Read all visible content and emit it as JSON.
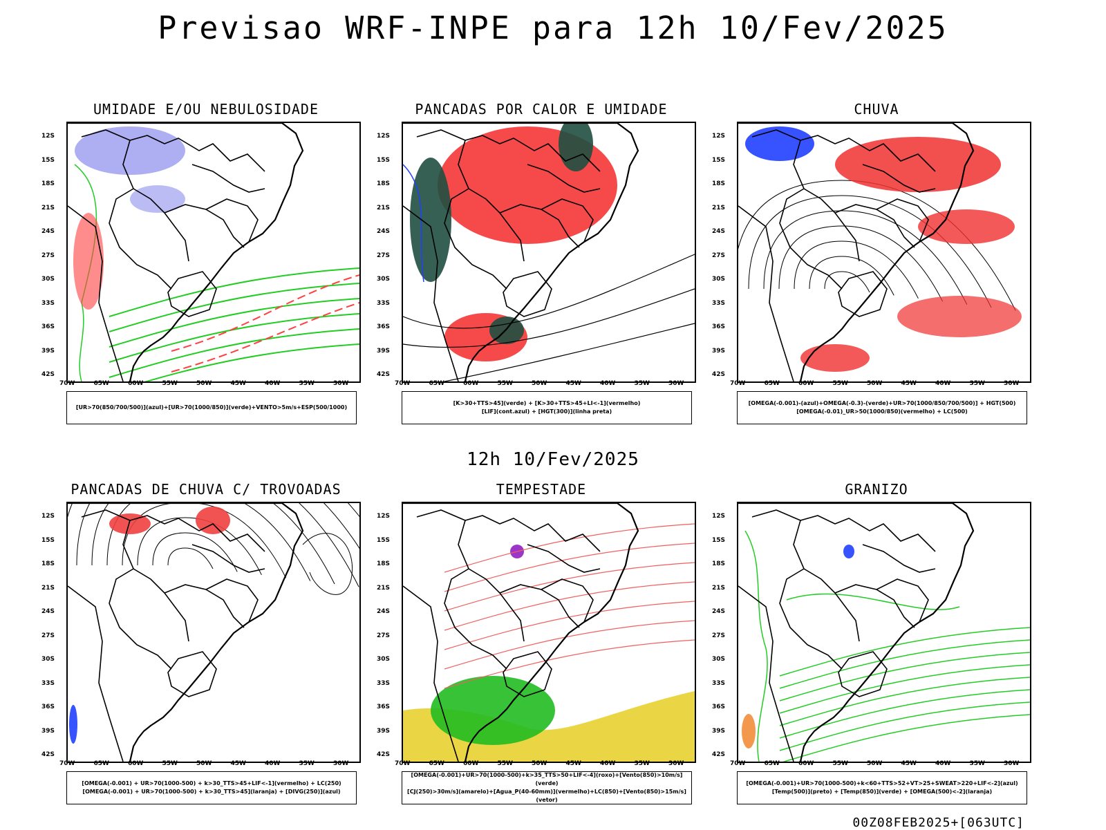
{
  "header": {
    "title": "Previsao WRF-INPE  para 12h 10/Fev/2025"
  },
  "middle": {
    "label": "12h 10/Fev/2025"
  },
  "footer": {
    "run": "00Z08FEB2025+[063UTC]"
  },
  "axes": {
    "lat_labels": [
      "12S",
      "15S",
      "18S",
      "21S",
      "24S",
      "27S",
      "30S",
      "33S",
      "36S",
      "39S",
      "42S"
    ],
    "lon_labels": [
      "70W",
      "65W",
      "60W",
      "55W",
      "50W",
      "45W",
      "40W",
      "35W",
      "30W"
    ]
  },
  "panels": [
    {
      "title": "UMIDADE E/OU NEBULOSIDADE",
      "legend": [
        "[UR>70(850/700/500)](azul)+[UR>70(1000/850)](verde)+VENTO>5m/s+ESP(500/1000)"
      ],
      "colors": {
        "blue": "#a0a0f0",
        "green": "#22cc22",
        "red": "#ff4040"
      }
    },
    {
      "title": "PANCADAS POR CALOR E UMIDADE",
      "legend": [
        "[K>30+TTS>45](verde) + [K>30+TTS>45+LI<-1](vermelho)",
        "[LIF](cont.azul) + [HGT(300)](linha preta)"
      ],
      "colors": {
        "red": "#f64040",
        "darkgreen": "#1f4f40",
        "blue": "#2040ff"
      }
    },
    {
      "title": "CHUVA",
      "legend": [
        "[OMEGA(-0.001)-(azul)+OMEGA(-0.3)-(verde)+UR>70(1000/850/700/500)] + HGT(500)",
        "[OMEGA(-0.01)_UR>50(1000/850)(vermelho) + LC(500)"
      ],
      "colors": {
        "red": "#f03030",
        "blue": "#2040ff"
      }
    },
    {
      "title": "PANCADAS DE CHUVA C/ TROVOADAS",
      "legend": [
        "[OMEGA(-0.001) + UR>70(1000-500) + k>30_TTS>45+LIF<-1](vermelho) + LC(250)",
        "[OMEGA(-0.001) + UR>70(1000-500) + k>30_TTS>45](laranja) + [DIVG(250)](azul)"
      ],
      "colors": {
        "red": "#f04040",
        "blue": "#2040ff"
      }
    },
    {
      "title": "TEMPESTADE",
      "legend": [
        "[OMEGA(-0.001)+UR>70(1000-500)+k>35_TTS>50+LIF<-4](roxo)+[Vento(850)>10m/s](verde)",
        "[CJ(250)>30m/s](amarelo)+[Agua_P(40-60mm)](vermelho)+LC(850)+[Vento(850)>15m/s](vetor)"
      ],
      "colors": {
        "yellow": "#e8d030",
        "green": "#22bb22",
        "red": "#f06060",
        "purple": "#9020c0"
      }
    },
    {
      "title": "GRANIZO",
      "legend": [
        "[OMEGA(-0.001)+UR>70(1000-500)+k<60+TTS>52+VT>25+SWEAT>220+LIF<-2](azul)",
        "[Temp(500)](preto) + [Temp(850)](verde) + [OMEGA(500)<-2](laranja)"
      ],
      "colors": {
        "green": "#22cc22",
        "orange": "#f08020",
        "blue": "#2040ff"
      }
    }
  ]
}
